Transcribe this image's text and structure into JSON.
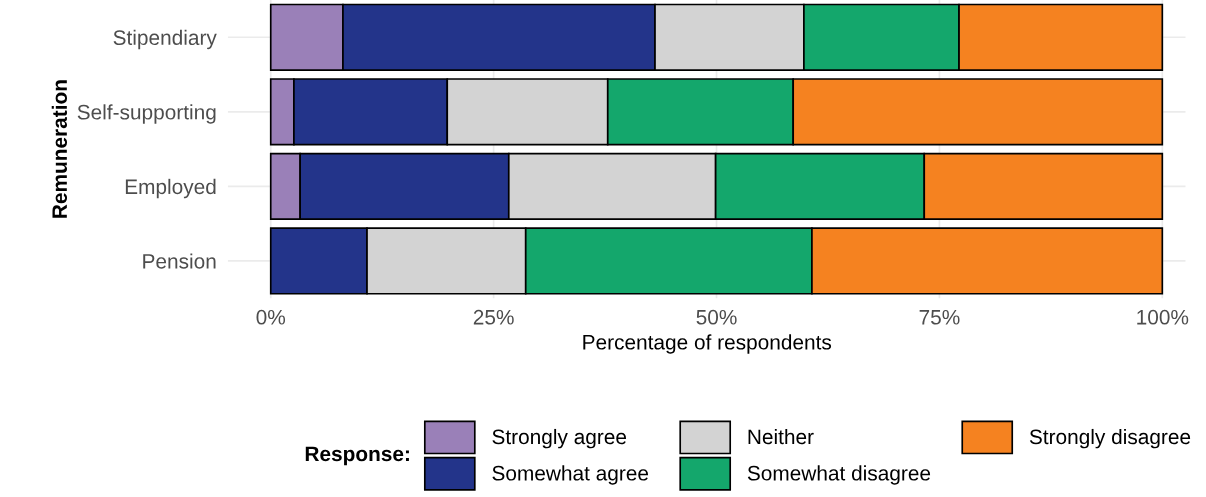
{
  "chart_data": {
    "type": "bar",
    "orientation": "horizontal",
    "stacked": true,
    "categories": [
      "Stipendiary",
      "Self-supporting",
      "Employed",
      "Pension"
    ],
    "series": [
      {
        "name": "Strongly agree",
        "color": "#9a80b8",
        "values": [
          8.1,
          2.6,
          3.3,
          0
        ]
      },
      {
        "name": "Somewhat agree",
        "color": "#23348a",
        "values": [
          35.0,
          17.2,
          23.4,
          10.8
        ]
      },
      {
        "name": "Neither",
        "color": "#d3d3d3",
        "values": [
          16.7,
          18.0,
          23.2,
          17.8
        ]
      },
      {
        "name": "Somewhat disagree",
        "color": "#14a76c",
        "values": [
          17.4,
          20.8,
          23.4,
          32.1
        ]
      },
      {
        "name": "Strongly disagree",
        "color": "#f58220",
        "values": [
          22.8,
          41.4,
          26.7,
          39.3
        ]
      }
    ],
    "xlim": [
      -4.8,
      102.6
    ],
    "xticks": [
      {
        "value": 0,
        "label": "0%"
      },
      {
        "value": 25,
        "label": "25%"
      },
      {
        "value": 50,
        "label": "50%"
      },
      {
        "value": 75,
        "label": "75%"
      },
      {
        "value": 100,
        "label": "100%"
      }
    ],
    "xlabel": "Percentage of respondents",
    "ylabel": "Remuneration",
    "legend_title": "Response:",
    "legend": "bottom",
    "grid": true
  }
}
